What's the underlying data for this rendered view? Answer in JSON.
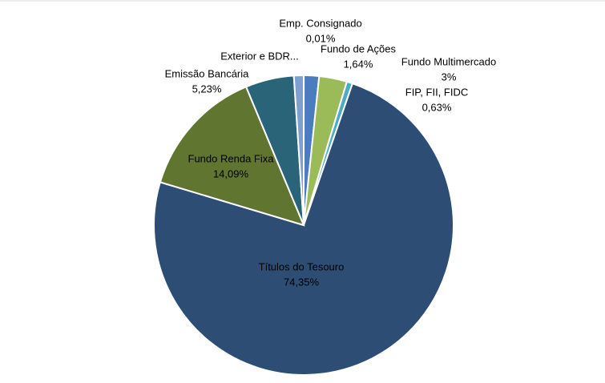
{
  "chart_data": {
    "type": "pie",
    "categories": [
      "Emp. Consignado",
      "Fundo de Ações",
      "Fundo Multimercado",
      "FIP, FII, FIDC",
      "Títulos do Tesouro",
      "Fundo Renda Fixa",
      "Emissão Bancária",
      "Exterior e BDR..."
    ],
    "values": [
      0.01,
      1.64,
      3,
      0.63,
      74.35,
      14.09,
      5.23,
      1.05
    ],
    "value_labels": [
      "0,01%",
      "1,64%",
      "3%",
      "0,63%",
      "74,35%",
      "14,09%",
      "5,23%",
      null
    ],
    "colors": [
      "#c0504d",
      "#4a7cc0",
      "#9bbb59",
      "#4bacc6",
      "#2e4d75",
      "#5f7530",
      "#2a6479",
      "#7f9fd0"
    ]
  }
}
